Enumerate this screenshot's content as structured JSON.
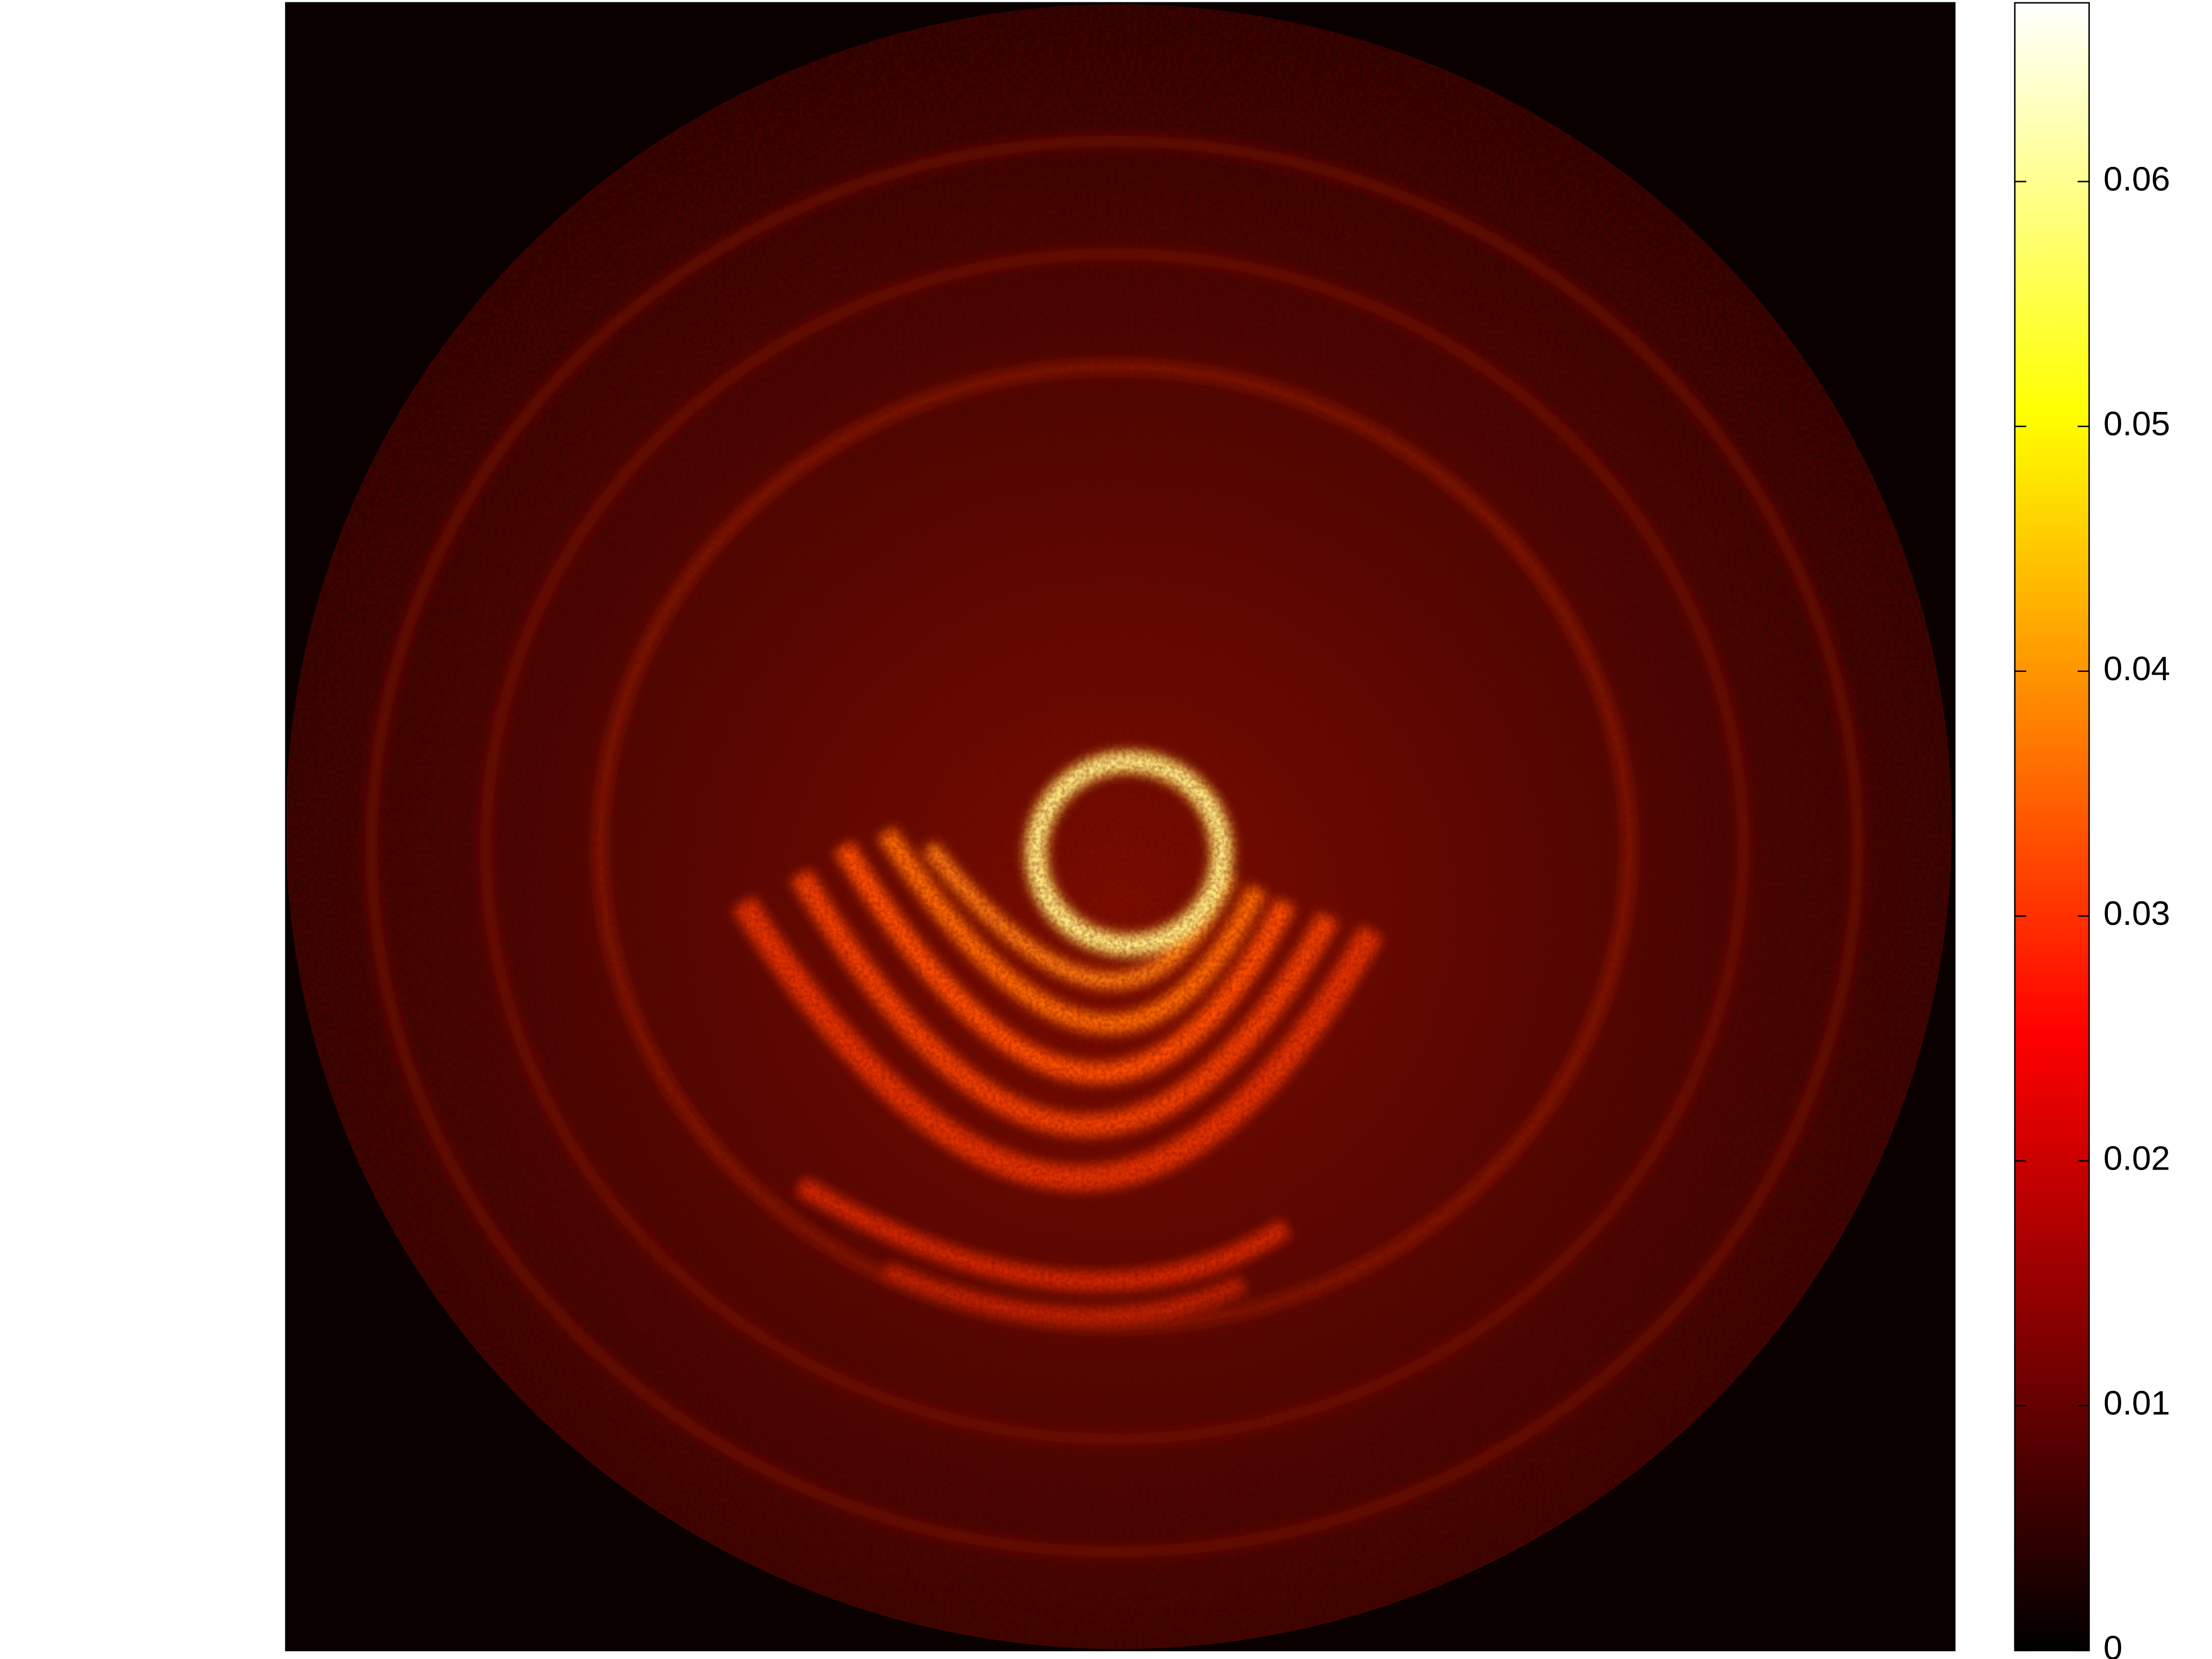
{
  "chart_data": {
    "type": "heatmap",
    "colormap": "hot",
    "zlim": [
      0,
      0.0673
    ],
    "zticks": [
      0,
      0.01,
      0.02,
      0.03,
      0.04,
      0.05,
      0.06
    ]
  }
}
